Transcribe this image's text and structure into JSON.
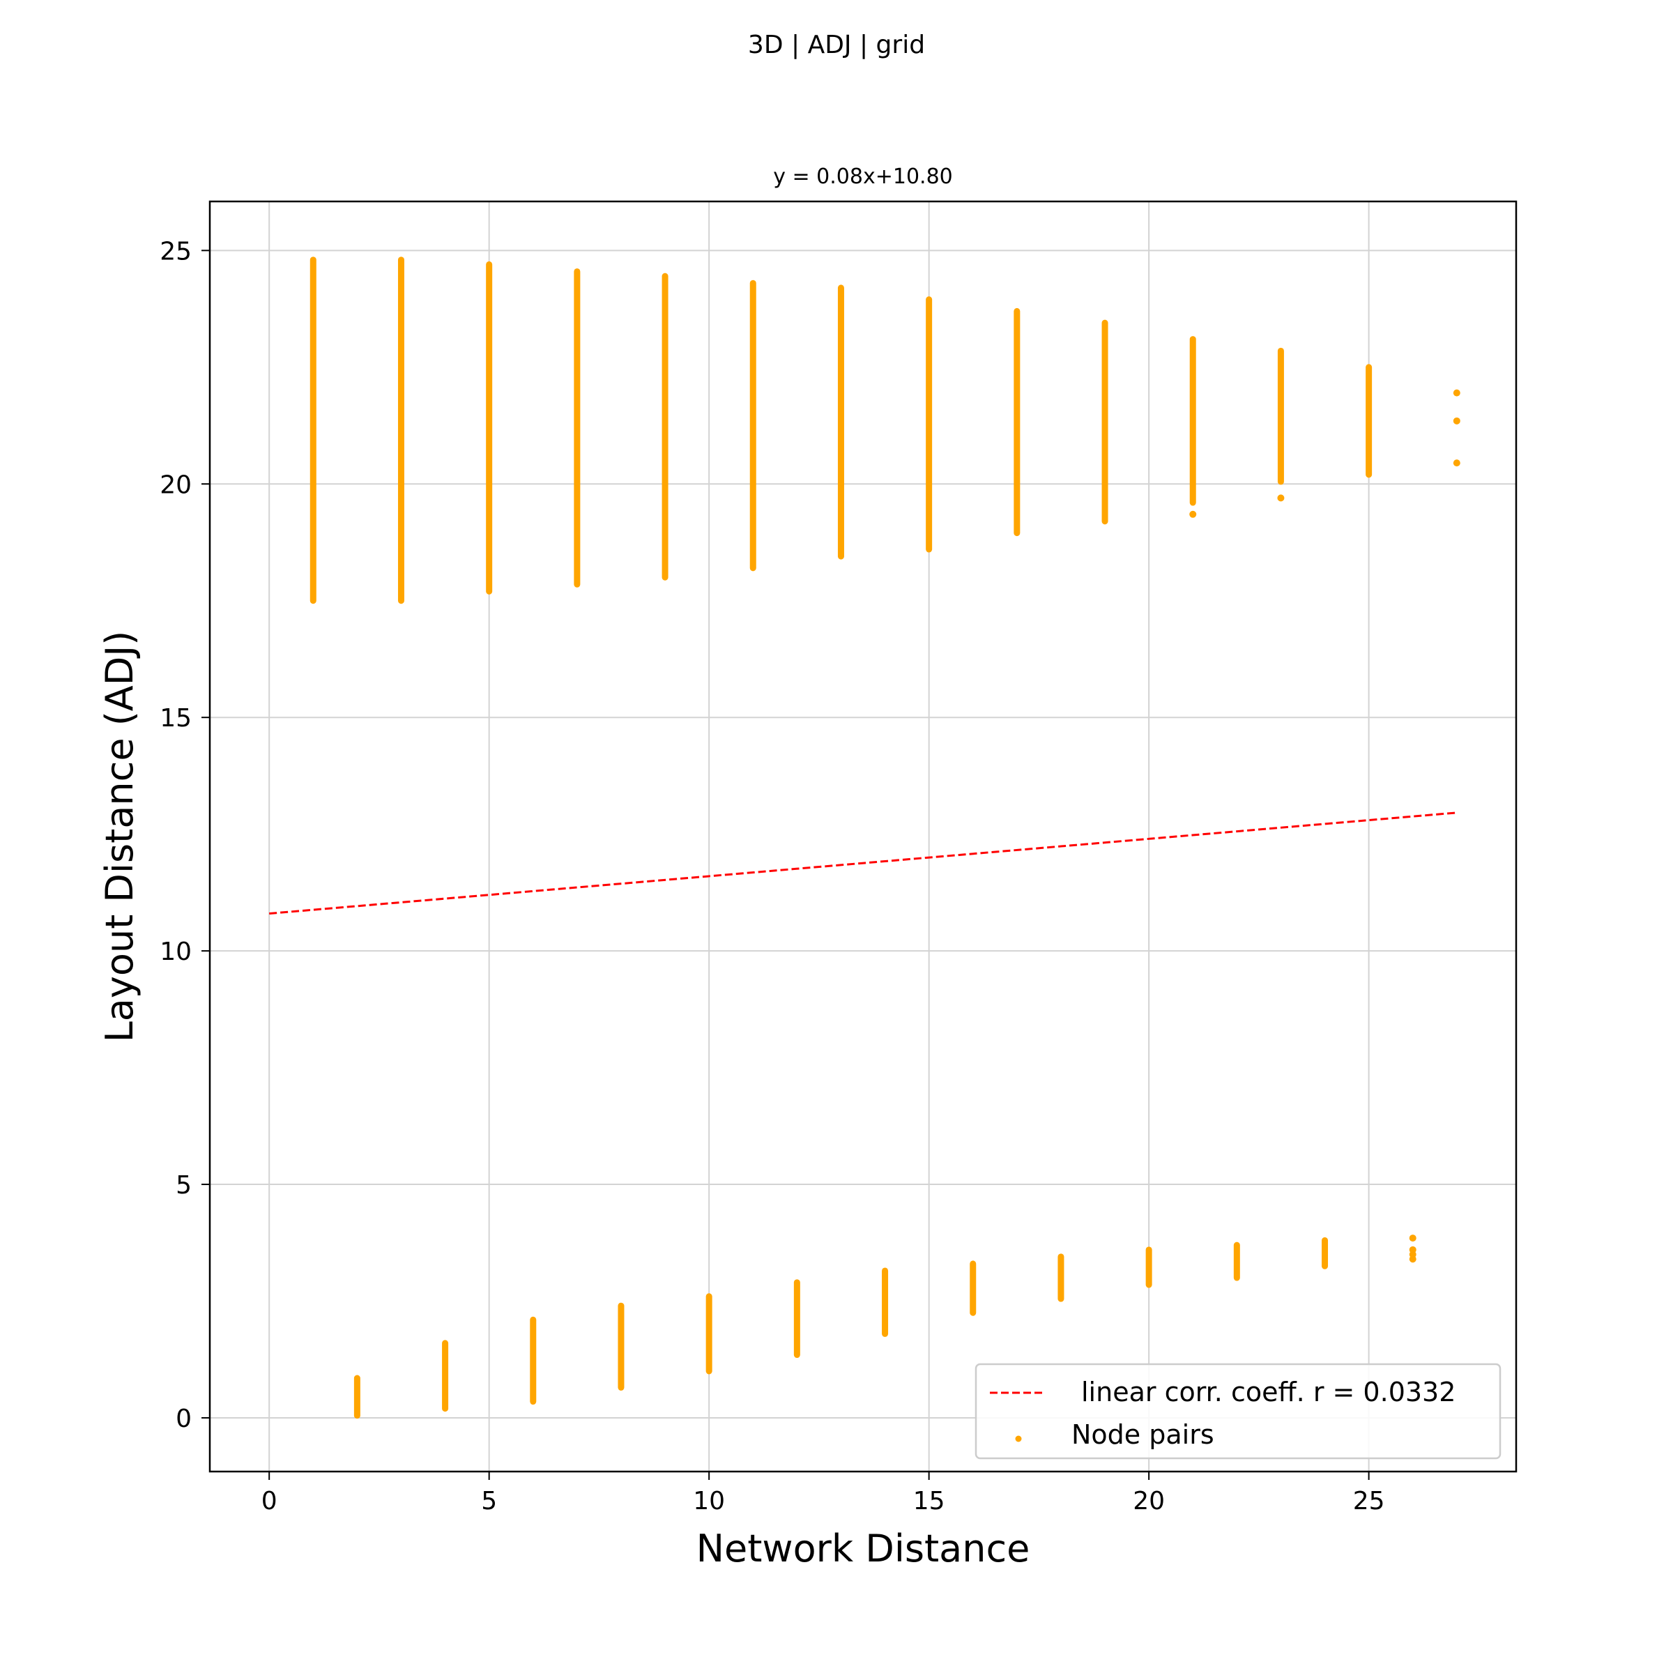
{
  "figure": {
    "suptitle": "3D | ADJ | grid"
  },
  "chart_data": {
    "type": "scatter",
    "title": "y = 0.08x+10.80",
    "xlabel": "Network Distance",
    "ylabel": "Layout Distance (ADJ)",
    "xlim": [
      -1.35,
      28.35
    ],
    "ylim": [
      -1.15,
      26.05
    ],
    "xticks": [
      "0",
      "5",
      "10",
      "15",
      "20",
      "25"
    ],
    "yticks": [
      "0",
      "5",
      "10",
      "15",
      "20",
      "25"
    ],
    "grid": true,
    "legend_position": "lower-right",
    "colors": {
      "points": "#FFA500",
      "fit_line": "#FF0000",
      "grid": "#D3D3D3"
    },
    "fit_line": {
      "slope": 0.08,
      "intercept": 10.8,
      "x_range": [
        0,
        27
      ],
      "style": "dashed",
      "legend_label": "linear corr. coeff. r = 0.0332"
    },
    "series": [
      {
        "name": "Node pairs",
        "color": "#FFA500",
        "bands": [
          {
            "x": 1,
            "y_min": 17.5,
            "y_max": 24.8
          },
          {
            "x": 2,
            "y_min": 0.05,
            "y_max": 0.85
          },
          {
            "x": 3,
            "y_min": 17.5,
            "y_max": 24.8
          },
          {
            "x": 4,
            "y_min": 0.2,
            "y_max": 1.6
          },
          {
            "x": 5,
            "y_min": 17.7,
            "y_max": 24.7
          },
          {
            "x": 6,
            "y_min": 0.35,
            "y_max": 2.1
          },
          {
            "x": 7,
            "y_min": 17.85,
            "y_max": 24.55
          },
          {
            "x": 8,
            "y_min": 0.65,
            "y_max": 2.4
          },
          {
            "x": 9,
            "y_min": 18.0,
            "y_max": 24.45
          },
          {
            "x": 10,
            "y_min": 1.0,
            "y_max": 2.6
          },
          {
            "x": 11,
            "y_min": 18.2,
            "y_max": 24.3
          },
          {
            "x": 12,
            "y_min": 1.35,
            "y_max": 2.9
          },
          {
            "x": 13,
            "y_min": 18.45,
            "y_max": 24.2
          },
          {
            "x": 14,
            "y_min": 1.8,
            "y_max": 3.15
          },
          {
            "x": 15,
            "y_min": 18.6,
            "y_max": 23.95
          },
          {
            "x": 16,
            "y_min": 2.25,
            "y_max": 3.3
          },
          {
            "x": 17,
            "y_min": 18.95,
            "y_max": 23.7
          },
          {
            "x": 18,
            "y_min": 2.55,
            "y_max": 3.45
          },
          {
            "x": 19,
            "y_min": 19.2,
            "y_max": 23.45
          },
          {
            "x": 20,
            "y_min": 2.85,
            "y_max": 3.6
          },
          {
            "x": 21,
            "y_min": 19.6,
            "y_max": 23.1
          },
          {
            "x": 22,
            "y_min": 3.0,
            "y_max": 3.7
          },
          {
            "x": 23,
            "y_min": 20.05,
            "y_max": 22.85
          },
          {
            "x": 24,
            "y_min": 3.25,
            "y_max": 3.8
          },
          {
            "x": 25,
            "y_min": 20.2,
            "y_max": 22.5
          }
        ],
        "points": [
          {
            "x": 21,
            "y": 19.35
          },
          {
            "x": 23,
            "y": 19.7
          },
          {
            "x": 26,
            "y": 3.85
          },
          {
            "x": 26,
            "y": 3.6
          },
          {
            "x": 26,
            "y": 3.5
          },
          {
            "x": 26,
            "y": 3.4
          },
          {
            "x": 27,
            "y": 21.95
          },
          {
            "x": 27,
            "y": 21.35
          },
          {
            "x": 27,
            "y": 20.45
          }
        ]
      }
    ]
  }
}
